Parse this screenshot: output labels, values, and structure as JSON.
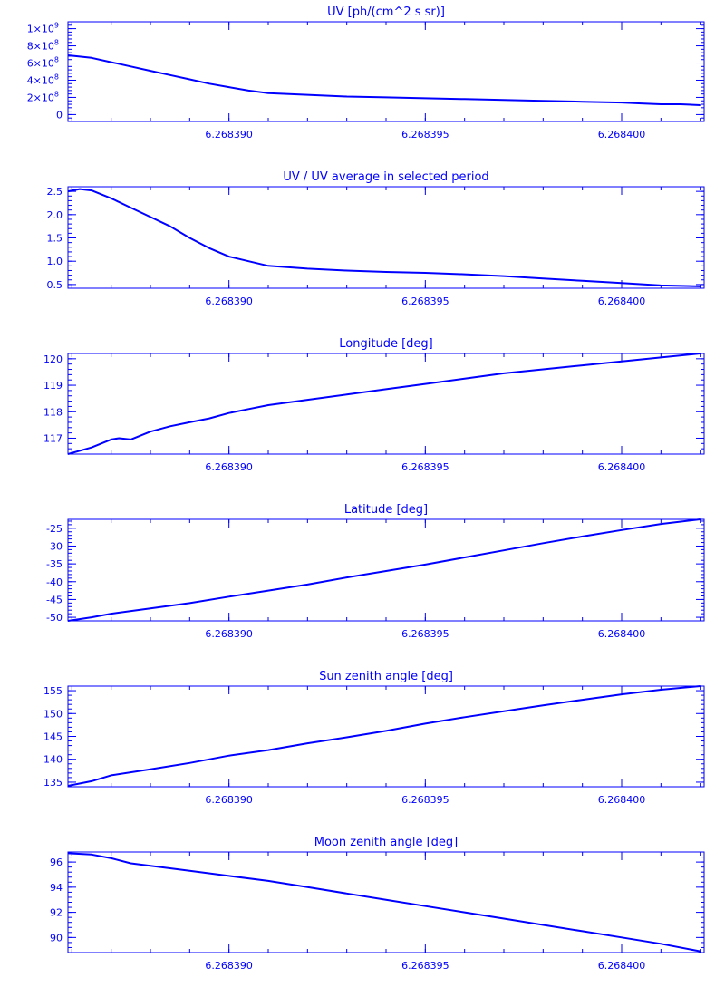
{
  "colors": {
    "line": "#0000ff",
    "axis": "#0000ff",
    "text": "#0000ff",
    "background": "#ffffff"
  },
  "chart_data": [
    {
      "type": "line",
      "title": "UV [ph/(cm^2 s sr)]",
      "xlim": [
        6.2683859,
        6.2684021
      ],
      "ylim": [
        -80000000,
        1080000000
      ],
      "xticks": [
        6.26839,
        6.268395,
        6.2684
      ],
      "xtick_labels": [
        "6.268390",
        "6.268395",
        "6.268400"
      ],
      "yticks": [
        0,
        200000000,
        400000000,
        600000000,
        800000000,
        1000000000
      ],
      "ytick_labels": [
        {
          "mantissa": "0",
          "exp": ""
        },
        {
          "mantissa": "2×10",
          "exp": "8"
        },
        {
          "mantissa": "4×10",
          "exp": "8"
        },
        {
          "mantissa": "6×10",
          "exp": "8"
        },
        {
          "mantissa": "8×10",
          "exp": "8"
        },
        {
          "mantissa": "1×10",
          "exp": "9"
        }
      ],
      "series": [
        {
          "x": [
            6.2683859,
            6.2683865,
            6.268387,
            6.2683875,
            6.268388,
            6.2683885,
            6.268389,
            6.2683895,
            6.26839,
            6.2683905,
            6.268391,
            6.268392,
            6.268393,
            6.268394,
            6.268395,
            6.268396,
            6.268397,
            6.268398,
            6.268399,
            6.2684,
            6.2684005,
            6.268401,
            6.2684015,
            6.268402
          ],
          "y": [
            690000000,
            660000000,
            610000000,
            560000000,
            510000000,
            460000000,
            410000000,
            360000000,
            320000000,
            280000000,
            250000000,
            230000000,
            210000000,
            200000000,
            190000000,
            180000000,
            170000000,
            160000000,
            150000000,
            140000000,
            130000000,
            120000000,
            120000000,
            110000000
          ]
        }
      ]
    },
    {
      "type": "line",
      "title": "UV / UV average in selected period",
      "xlim": [
        6.2683859,
        6.2684021
      ],
      "ylim": [
        0.42,
        2.6
      ],
      "xticks": [
        6.26839,
        6.268395,
        6.2684
      ],
      "xtick_labels": [
        "6.268390",
        "6.268395",
        "6.268400"
      ],
      "yticks": [
        0.5,
        1.0,
        1.5,
        2.0,
        2.5
      ],
      "ytick_labels": [
        "0.5",
        "1.0",
        "1.5",
        "2.0",
        "2.5"
      ],
      "series": [
        {
          "x": [
            6.2683859,
            6.2683862,
            6.2683865,
            6.268387,
            6.2683875,
            6.268388,
            6.2683885,
            6.268389,
            6.2683895,
            6.26839,
            6.2683905,
            6.268391,
            6.268392,
            6.268393,
            6.268394,
            6.268395,
            6.268396,
            6.268397,
            6.268398,
            6.268399,
            6.2684,
            6.268401,
            6.268402
          ],
          "y": [
            2.5,
            2.55,
            2.52,
            2.35,
            2.15,
            1.95,
            1.75,
            1.5,
            1.28,
            1.1,
            1.0,
            0.9,
            0.84,
            0.8,
            0.77,
            0.75,
            0.72,
            0.68,
            0.63,
            0.58,
            0.53,
            0.48,
            0.46
          ]
        }
      ]
    },
    {
      "type": "line",
      "title": "Longitude [deg]",
      "xlim": [
        6.2683859,
        6.2684021
      ],
      "ylim": [
        116.4,
        120.2
      ],
      "xticks": [
        6.26839,
        6.268395,
        6.2684
      ],
      "xtick_labels": [
        "6.268390",
        "6.268395",
        "6.268400"
      ],
      "yticks": [
        117,
        118,
        119,
        120
      ],
      "ytick_labels": [
        "117",
        "118",
        "119",
        "120"
      ],
      "series": [
        {
          "x": [
            6.2683859,
            6.2683865,
            6.268387,
            6.2683872,
            6.2683875,
            6.268388,
            6.2683885,
            6.268389,
            6.2683895,
            6.26839,
            6.2683905,
            6.268391,
            6.268392,
            6.268393,
            6.268394,
            6.268395,
            6.268396,
            6.268397,
            6.268398,
            6.268399,
            6.2684,
            6.268401,
            6.268402
          ],
          "y": [
            116.4,
            116.65,
            116.95,
            117.0,
            116.95,
            117.25,
            117.45,
            117.6,
            117.75,
            117.95,
            118.1,
            118.25,
            118.45,
            118.65,
            118.85,
            119.05,
            119.25,
            119.45,
            119.6,
            119.75,
            119.9,
            120.05,
            120.2
          ]
        }
      ]
    },
    {
      "type": "line",
      "title": "Latitude [deg]",
      "xlim": [
        6.2683859,
        6.2684021
      ],
      "ylim": [
        -51,
        -22.5
      ],
      "xticks": [
        6.26839,
        6.268395,
        6.2684
      ],
      "xtick_labels": [
        "6.268390",
        "6.268395",
        "6.268400"
      ],
      "yticks": [
        -50,
        -45,
        -40,
        -35,
        -30,
        -25
      ],
      "ytick_labels": [
        "-50",
        "-45",
        "-40",
        "-35",
        "-30",
        "-25"
      ],
      "series": [
        {
          "x": [
            6.2683859,
            6.2683865,
            6.268387,
            6.268388,
            6.268389,
            6.26839,
            6.268391,
            6.268392,
            6.268393,
            6.268394,
            6.268395,
            6.268396,
            6.268397,
            6.268398,
            6.268399,
            6.2684,
            6.268401,
            6.268402
          ],
          "y": [
            -51,
            -50,
            -49,
            -47.5,
            -46,
            -44.2,
            -42.5,
            -40.8,
            -38.8,
            -37,
            -35.2,
            -33.2,
            -31.2,
            -29.2,
            -27.3,
            -25.5,
            -23.8,
            -22.5
          ]
        }
      ]
    },
    {
      "type": "line",
      "title": "Sun zenith angle [deg]",
      "xlim": [
        6.2683859,
        6.2684021
      ],
      "ylim": [
        134,
        156
      ],
      "xticks": [
        6.26839,
        6.268395,
        6.2684
      ],
      "xtick_labels": [
        "6.268390",
        "6.268395",
        "6.268400"
      ],
      "yticks": [
        135,
        140,
        145,
        150,
        155
      ],
      "ytick_labels": [
        "135",
        "140",
        "145",
        "150",
        "155"
      ],
      "series": [
        {
          "x": [
            6.2683859,
            6.2683865,
            6.268387,
            6.268388,
            6.268389,
            6.26839,
            6.268391,
            6.268392,
            6.268393,
            6.268394,
            6.268395,
            6.268396,
            6.268397,
            6.268398,
            6.268399,
            6.2684,
            6.268401,
            6.268402
          ],
          "y": [
            134.2,
            135.2,
            136.5,
            137.8,
            139.2,
            140.8,
            142,
            143.5,
            144.8,
            146.2,
            147.8,
            149.2,
            150.5,
            151.8,
            153,
            154.2,
            155.2,
            156
          ]
        }
      ]
    },
    {
      "type": "line",
      "title": "Moon zenith angle [deg]",
      "xlim": [
        6.2683859,
        6.2684021
      ],
      "ylim": [
        88.8,
        96.8
      ],
      "xticks": [
        6.26839,
        6.268395,
        6.2684
      ],
      "xtick_labels": [
        "6.268390",
        "6.268395",
        "6.268400"
      ],
      "yticks": [
        90,
        92,
        94,
        96
      ],
      "ytick_labels": [
        "90",
        "92",
        "94",
        "96"
      ],
      "series": [
        {
          "x": [
            6.2683859,
            6.2683865,
            6.268387,
            6.2683875,
            6.268388,
            6.268389,
            6.26839,
            6.268391,
            6.268392,
            6.268393,
            6.268394,
            6.268395,
            6.268396,
            6.268397,
            6.268398,
            6.268399,
            6.2684,
            6.268401,
            6.268402
          ],
          "y": [
            96.7,
            96.6,
            96.3,
            95.9,
            95.7,
            95.3,
            94.9,
            94.5,
            94,
            93.5,
            93,
            92.5,
            92,
            91.5,
            91,
            90.5,
            90,
            89.5,
            88.9
          ]
        }
      ]
    }
  ]
}
